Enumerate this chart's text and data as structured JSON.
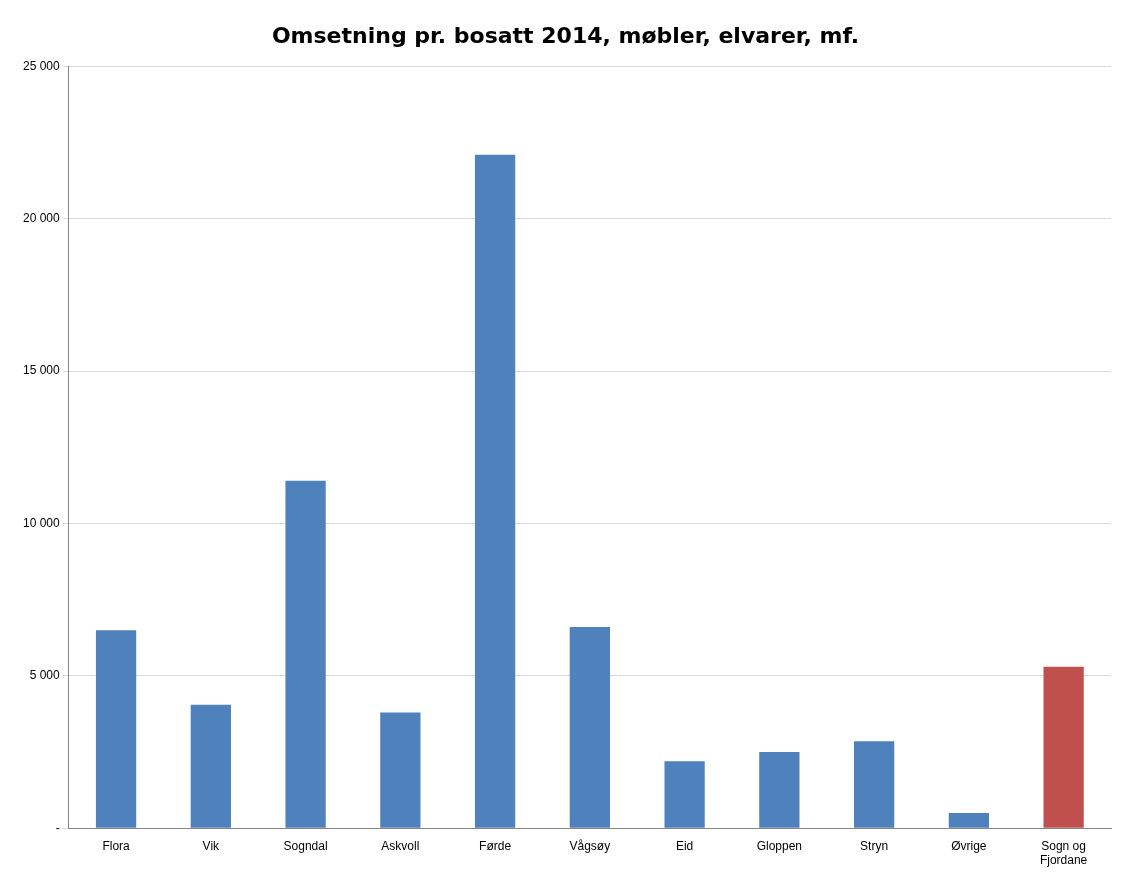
{
  "chart_data": {
    "type": "bar",
    "title": "Omsetning pr. bosatt 2014, møbler, elvarer, mf.",
    "categories": [
      "Flora",
      "Vik",
      "Sogndal",
      "Askvoll",
      "Førde",
      "Vågsøy",
      "Eid",
      "Gloppen",
      "Stryn",
      "Øvrige",
      "Sogn og Fjordane"
    ],
    "values": [
      6500,
      4050,
      11400,
      3800,
      22100,
      6600,
      2200,
      2500,
      2850,
      500,
      5300
    ],
    "colors": [
      "#4f81bd",
      "#4f81bd",
      "#4f81bd",
      "#4f81bd",
      "#4f81bd",
      "#4f81bd",
      "#4f81bd",
      "#4f81bd",
      "#4f81bd",
      "#4f81bd",
      "#c0504d"
    ],
    "ylim": [
      0,
      25000
    ],
    "yticks": [
      {
        "value": 0,
        "label": "-"
      },
      {
        "value": 5000,
        "label": "5 000"
      },
      {
        "value": 10000,
        "label": "10 000"
      },
      {
        "value": 15000,
        "label": "15 000"
      },
      {
        "value": 20000,
        "label": "20 000"
      },
      {
        "value": 25000,
        "label": "25 000"
      }
    ],
    "grid": "y",
    "legend": false
  }
}
